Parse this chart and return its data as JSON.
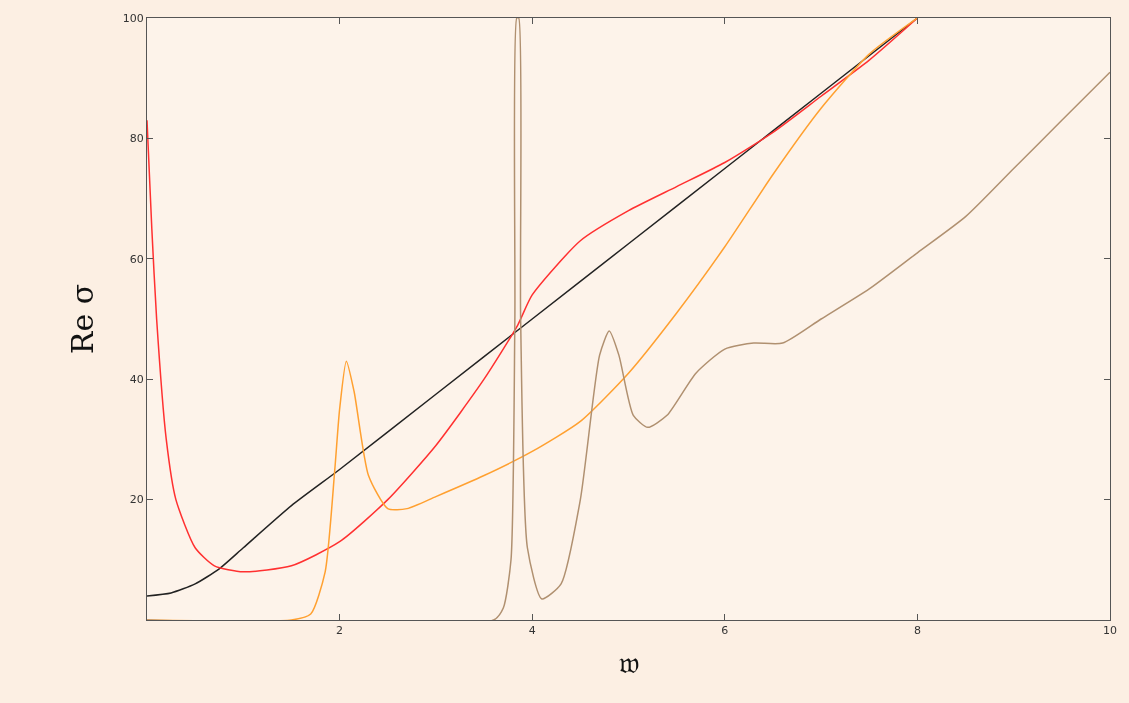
{
  "chart_data": {
    "type": "line",
    "xlabel": "𝔴",
    "ylabel": "Re σ",
    "xlim": [
      0,
      10
    ],
    "ylim": [
      0,
      100
    ],
    "xticks": [
      2,
      4,
      6,
      8,
      10
    ],
    "yticks": [
      20,
      40,
      60,
      80,
      100
    ],
    "grid": false,
    "legend": false,
    "marker": "none",
    "line_style": "solid",
    "series": [
      {
        "color": "#222222",
        "x": [
          0,
          0.25,
          0.5,
          0.75,
          1,
          1.5,
          2,
          3,
          4,
          5,
          6,
          7,
          8
        ],
        "values": [
          4,
          4.5,
          6,
          8.5,
          12,
          19,
          25,
          37.5,
          50,
          62.5,
          75,
          87.5,
          100
        ]
      },
      {
        "color": "#ff3030",
        "x": [
          0,
          0.05,
          0.1,
          0.2,
          0.3,
          0.5,
          0.7,
          1,
          1.5,
          2,
          2.5,
          3,
          3.5,
          3.85,
          4,
          4.5,
          5,
          5.5,
          6,
          6.5,
          7,
          7.5,
          8
        ],
        "values": [
          83,
          65,
          50,
          30,
          20,
          12,
          9,
          8,
          9,
          13,
          20,
          29,
          40,
          49,
          54,
          63,
          68,
          72,
          76,
          81,
          87,
          93,
          100
        ]
      },
      {
        "color": "#ffa030",
        "x": [
          0,
          1.5,
          1.7,
          1.85,
          1.95,
          2.0,
          2.07,
          2.15,
          2.3,
          2.5,
          2.7,
          3,
          3.5,
          4,
          4.5,
          5,
          5.5,
          6,
          6.5,
          7,
          7.5,
          8
        ],
        "values": [
          0,
          0,
          1,
          8,
          25,
          35,
          43,
          38,
          24,
          18.5,
          18.5,
          20.5,
          24,
          28,
          33,
          41,
          51,
          62,
          74,
          85,
          94,
          100
        ]
      },
      {
        "color": "#b09070",
        "x": [
          0,
          3.6,
          3.7,
          3.78,
          3.82,
          3.84,
          3.86,
          3.88,
          3.95,
          4.1,
          4.3,
          4.5,
          4.7,
          4.8,
          4.9,
          5.05,
          5.2,
          5.4,
          5.7,
          6,
          6.3,
          6.6,
          7,
          7.5,
          8,
          8.5,
          9,
          9.5,
          10
        ],
        "values": [
          0,
          0,
          2,
          10,
          50,
          100,
          100,
          50,
          12,
          3.5,
          6,
          20,
          44,
          48,
          44,
          34,
          32,
          34,
          41,
          45,
          46,
          46,
          50,
          55,
          61,
          67,
          75,
          83,
          91
        ]
      }
    ]
  }
}
